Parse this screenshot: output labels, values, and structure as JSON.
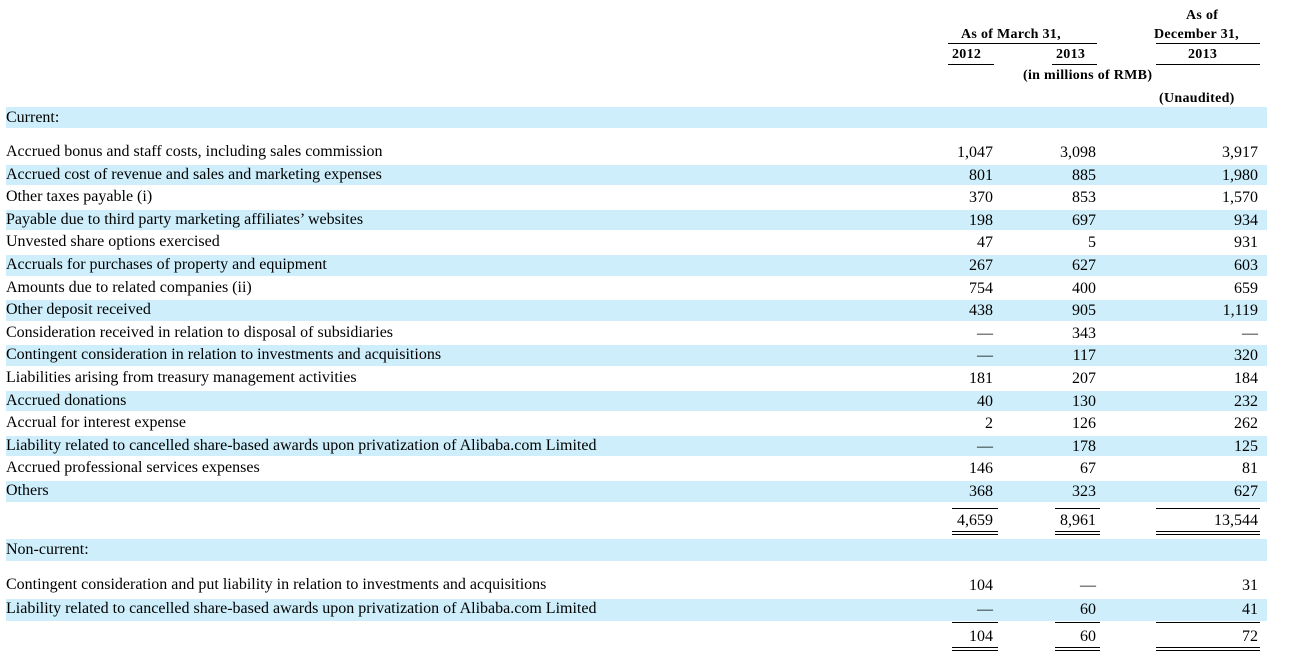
{
  "header": {
    "as_of_march": "As of March 31,",
    "year_2012": "2012",
    "year_2013": "2013",
    "as_of": "As of",
    "december": "December 31,",
    "year_2013b": "2013",
    "units": "(in millions of RMB)",
    "unaudited": "(Unaudited)"
  },
  "sections": {
    "current": "Current:",
    "noncurrent": "Non-current:"
  },
  "current_rows": [
    {
      "label": "Accrued bonus and staff costs, including sales commission",
      "v2012": "1,047",
      "v2013": "3,098",
      "vdec": "3,917"
    },
    {
      "label": "Accrued cost of revenue and sales and marketing expenses",
      "v2012": "801",
      "v2013": "885",
      "vdec": "1,980"
    },
    {
      "label": "Other taxes payable (i)",
      "v2012": "370",
      "v2013": "853",
      "vdec": "1,570"
    },
    {
      "label": "Payable due to third party marketing affiliates’ websites",
      "v2012": "198",
      "v2013": "697",
      "vdec": "934"
    },
    {
      "label": "Unvested share options exercised",
      "v2012": "47",
      "v2013": "5",
      "vdec": "931"
    },
    {
      "label": "Accruals for purchases of property and equipment",
      "v2012": "267",
      "v2013": "627",
      "vdec": "603"
    },
    {
      "label": "Amounts due to related companies (ii)",
      "v2012": "754",
      "v2013": "400",
      "vdec": "659"
    },
    {
      "label": "Other deposit received",
      "v2012": "438",
      "v2013": "905",
      "vdec": "1,119"
    },
    {
      "label": "Consideration received in relation to disposal of subsidiaries",
      "v2012": "—",
      "v2013": "343",
      "vdec": "—"
    },
    {
      "label": "Contingent consideration in relation to investments and acquisitions",
      "v2012": "—",
      "v2013": "117",
      "vdec": "320"
    },
    {
      "label": "Liabilities arising from treasury management activities",
      "v2012": "181",
      "v2013": "207",
      "vdec": "184"
    },
    {
      "label": "Accrued donations",
      "v2012": "40",
      "v2013": "130",
      "vdec": "232"
    },
    {
      "label": "Accrual for interest expense",
      "v2012": "2",
      "v2013": "126",
      "vdec": "262"
    },
    {
      "label": "Liability related to cancelled share-based awards upon privatization of Alibaba.com Limited",
      "v2012": "—",
      "v2013": "178",
      "vdec": "125"
    },
    {
      "label": "Accrued professional services expenses",
      "v2012": "146",
      "v2013": "67",
      "vdec": "81"
    },
    {
      "label": "Others",
      "v2012": "368",
      "v2013": "323",
      "vdec": "627"
    }
  ],
  "current_total": {
    "v2012": "4,659",
    "v2013": "8,961",
    "vdec": "13,544"
  },
  "noncurrent_rows": [
    {
      "label": "Contingent consideration and put liability in relation to investments and acquisitions",
      "v2012": "104",
      "v2013": "—",
      "vdec": "31"
    },
    {
      "label": "Liability related to cancelled share-based awards upon privatization of Alibaba.com Limited",
      "v2012": "—",
      "v2013": "60",
      "vdec": "41"
    }
  ],
  "noncurrent_total": {
    "v2012": "104",
    "v2013": "60",
    "vdec": "72"
  }
}
